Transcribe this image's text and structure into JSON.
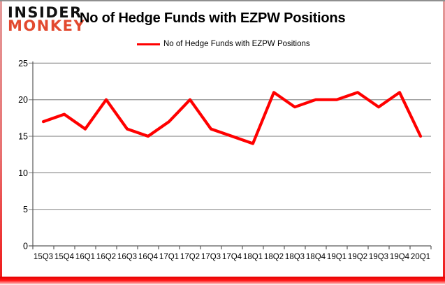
{
  "logo": {
    "line1": "INSIDER",
    "line2": "MONKEY"
  },
  "header": {
    "title": "No of Hedge Funds with EZPW Positions"
  },
  "legend": {
    "label": "No of Hedge Funds with EZPW Positions"
  },
  "colors": {
    "brand_red": "#e2492f",
    "series_red": "#ff0000",
    "grid_gray": "#909090",
    "axis_gray": "#595959",
    "text_black": "#000000"
  },
  "chart_data": {
    "type": "line",
    "title": "No of Hedge Funds with EZPW Positions",
    "categories": [
      "15Q3",
      "15Q4",
      "16Q1",
      "16Q2",
      "16Q3",
      "16Q4",
      "17Q1",
      "17Q2",
      "17Q3",
      "17Q4",
      "18Q1",
      "18Q2",
      "18Q3",
      "18Q4",
      "19Q1",
      "19Q2",
      "19Q3",
      "19Q4",
      "20Q1"
    ],
    "series": [
      {
        "name": "No of Hedge Funds with EZPW Positions",
        "color": "#ff0000",
        "values": [
          17,
          18,
          16,
          20,
          16,
          15,
          17,
          20,
          16,
          15,
          14,
          21,
          19,
          20,
          20,
          21,
          19,
          21,
          15
        ]
      }
    ],
    "xlabel": "",
    "ylabel": "",
    "ylim": [
      0,
      25
    ],
    "yticks": [
      0,
      5,
      10,
      15,
      20,
      25
    ],
    "grid": true,
    "legend_position": "top-center"
  }
}
